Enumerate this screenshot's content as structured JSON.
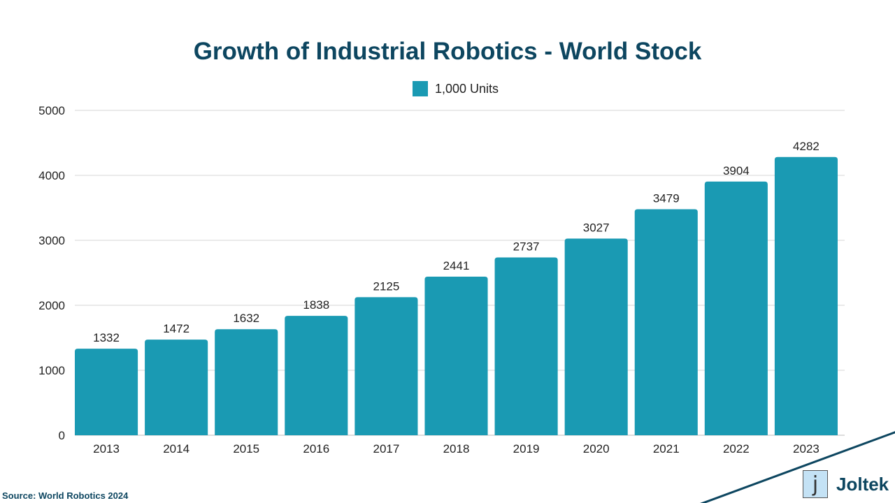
{
  "chart_data": {
    "type": "bar",
    "title": "Growth of Industrial Robotics - World Stock",
    "categories": [
      "2013",
      "2014",
      "2015",
      "2016",
      "2017",
      "2018",
      "2019",
      "2020",
      "2021",
      "2022",
      "2023"
    ],
    "series": [
      {
        "name": "1,000 Units",
        "values": [
          1332,
          1472,
          1632,
          1838,
          2125,
          2441,
          2737,
          3027,
          3479,
          3904,
          4282
        ],
        "color": "#1a9ab3"
      }
    ],
    "ylim": [
      0,
      5000
    ],
    "yticks": [
      0,
      1000,
      2000,
      3000,
      4000,
      5000
    ],
    "grid": true,
    "legend": "top-center",
    "data_labels": true
  },
  "source": "Source: World Robotics 2024",
  "logo": {
    "text": "Joltek",
    "glyph": "j"
  },
  "colors": {
    "title": "#0d4660",
    "bar": "#1a9ab3",
    "accent_line": "#0d4660"
  }
}
